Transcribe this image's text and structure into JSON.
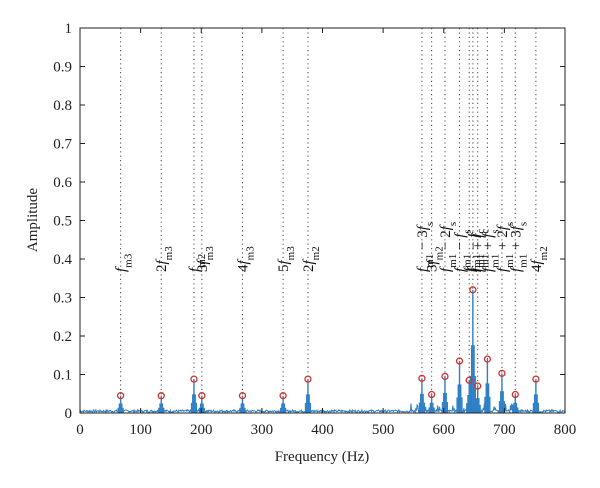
{
  "chart_data": {
    "type": "line",
    "xlabel": "Frequency (Hz)",
    "ylabel": "Amplitude",
    "xlim": [
      0,
      800
    ],
    "ylim": [
      0,
      1
    ],
    "xticks": [
      0,
      100,
      200,
      300,
      400,
      500,
      600,
      700,
      800
    ],
    "yticks": [
      0,
      0.1,
      0.2,
      0.3,
      0.4,
      0.5,
      0.6,
      0.7,
      0.8,
      0.9,
      1
    ],
    "grid": false,
    "line_color": "#2f7fc6",
    "marker_color": "#d0332b",
    "peaks": [
      {
        "x": 67,
        "y": 0.045
      },
      {
        "x": 134,
        "y": 0.045
      },
      {
        "x": 188,
        "y": 0.088
      },
      {
        "x": 201,
        "y": 0.045
      },
      {
        "x": 268,
        "y": 0.045
      },
      {
        "x": 335,
        "y": 0.045
      },
      {
        "x": 376,
        "y": 0.088
      },
      {
        "x": 564,
        "y": 0.09
      },
      {
        "x": 580,
        "y": 0.048
      },
      {
        "x": 602,
        "y": 0.095
      },
      {
        "x": 626,
        "y": 0.135
      },
      {
        "x": 642,
        "y": 0.085
      },
      {
        "x": 648,
        "y": 0.32
      },
      {
        "x": 656,
        "y": 0.07
      },
      {
        "x": 672,
        "y": 0.14
      },
      {
        "x": 696,
        "y": 0.103
      },
      {
        "x": 718,
        "y": 0.048
      },
      {
        "x": 752,
        "y": 0.088
      }
    ],
    "annotations": [
      {
        "x": 67,
        "parts": [
          [
            "f",
            "i"
          ],
          [
            "m3",
            "sub"
          ]
        ]
      },
      {
        "x": 134,
        "parts": [
          [
            "2",
            "n"
          ],
          [
            "f",
            "i"
          ],
          [
            "m3",
            "sub"
          ]
        ]
      },
      {
        "x": 188,
        "parts": [
          [
            "f",
            "i"
          ],
          [
            "m2",
            "sub"
          ]
        ]
      },
      {
        "x": 201,
        "parts": [
          [
            "3",
            "n"
          ],
          [
            "f",
            "i"
          ],
          [
            "m3",
            "sub"
          ]
        ]
      },
      {
        "x": 268,
        "parts": [
          [
            "4",
            "n"
          ],
          [
            "f",
            "i"
          ],
          [
            "m3",
            "sub"
          ]
        ]
      },
      {
        "x": 335,
        "parts": [
          [
            "5",
            "n"
          ],
          [
            "f",
            "i"
          ],
          [
            "m3",
            "sub"
          ]
        ]
      },
      {
        "x": 376,
        "parts": [
          [
            "2",
            "n"
          ],
          [
            "f",
            "i"
          ],
          [
            "m2",
            "sub"
          ]
        ]
      },
      {
        "x": 564,
        "parts": [
          [
            "f",
            "i"
          ],
          [
            "m1",
            "sub"
          ],
          [
            " − 3",
            "n"
          ],
          [
            "f",
            "i"
          ],
          [
            "s",
            "sub"
          ]
        ]
      },
      {
        "x": 580,
        "parts": [
          [
            "3",
            "n"
          ],
          [
            "f",
            "i"
          ],
          [
            "m2",
            "sub"
          ]
        ]
      },
      {
        "x": 602,
        "parts": [
          [
            "f",
            "i"
          ],
          [
            "m1",
            "sub"
          ],
          [
            " − 2",
            "n"
          ],
          [
            "f",
            "i"
          ],
          [
            "s",
            "sub"
          ]
        ]
      },
      {
        "x": 626,
        "parts": [
          [
            "f",
            "i"
          ],
          [
            "m1",
            "sub"
          ],
          [
            " − ",
            "n"
          ],
          [
            "f",
            "i"
          ],
          [
            "s",
            "sub"
          ]
        ]
      },
      {
        "x": 642,
        "parts": [
          [
            "f",
            "i"
          ],
          [
            "m1",
            "sub"
          ]
        ]
      },
      {
        "x": 648,
        "parts": [
          [
            "f",
            "i"
          ],
          [
            "m1",
            "sub"
          ],
          [
            " − ",
            "n"
          ],
          [
            "f",
            "i"
          ],
          [
            "c",
            "sub"
          ]
        ]
      },
      {
        "x": 656,
        "parts": [
          [
            "f",
            "i"
          ],
          [
            "m1",
            "sub"
          ],
          [
            " + ",
            "n"
          ],
          [
            "f",
            "i"
          ],
          [
            "c",
            "sub"
          ]
        ]
      },
      {
        "x": 672,
        "parts": [
          [
            "f",
            "i"
          ],
          [
            "m1",
            "sub"
          ],
          [
            " + ",
            "n"
          ],
          [
            "f",
            "i"
          ],
          [
            "s",
            "sub"
          ]
        ]
      },
      {
        "x": 696,
        "parts": [
          [
            "f",
            "i"
          ],
          [
            "m1",
            "sub"
          ],
          [
            " + 2",
            "n"
          ],
          [
            "f",
            "i"
          ],
          [
            "s",
            "sub"
          ]
        ]
      },
      {
        "x": 718,
        "parts": [
          [
            "f",
            "i"
          ],
          [
            "m1",
            "sub"
          ],
          [
            " + 3",
            "n"
          ],
          [
            "f",
            "i"
          ],
          [
            "s",
            "sub"
          ]
        ]
      },
      {
        "x": 752,
        "parts": [
          [
            "4",
            "n"
          ],
          [
            "f",
            "i"
          ],
          [
            "m2",
            "sub"
          ]
        ]
      }
    ]
  }
}
